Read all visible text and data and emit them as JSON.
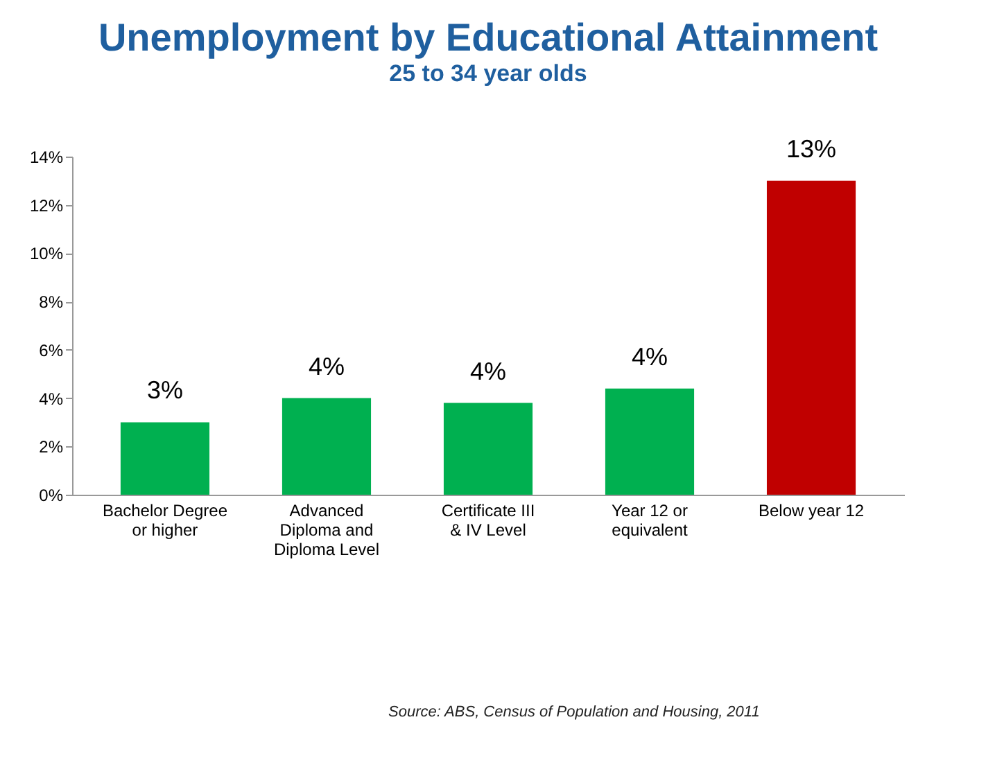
{
  "chart_data": {
    "type": "bar",
    "title": "Unemployment by Educational Attainment",
    "subtitle": "25 to 34 year olds",
    "categories": [
      "Bachelor Degree or higher",
      "Advanced Diploma and Diploma Level",
      "Certificate III & IV Level",
      "Year 12 or equivalent",
      "Below year 12"
    ],
    "values": [
      3.0,
      4.0,
      3.8,
      4.4,
      13.0
    ],
    "colors": [
      "#00b050",
      "#00b050",
      "#00b050",
      "#00b050",
      "#c00000"
    ],
    "value_labels": [
      "3%",
      "4%",
      "4%",
      "4%",
      "13%"
    ],
    "ylim": [
      0,
      14
    ],
    "yticks": [
      {
        "value": 0,
        "label": "0%"
      },
      {
        "value": 2,
        "label": "2%"
      },
      {
        "value": 4,
        "label": "4%"
      },
      {
        "value": 6,
        "label": "6%"
      },
      {
        "value": 8,
        "label": "8%"
      },
      {
        "value": 10,
        "label": "10%"
      },
      {
        "value": 12,
        "label": "12%"
      },
      {
        "value": 14,
        "label": "14%"
      }
    ],
    "grid": false,
    "annotations": [
      "Source: ABS, Census of Population and Housing, 2011"
    ]
  }
}
